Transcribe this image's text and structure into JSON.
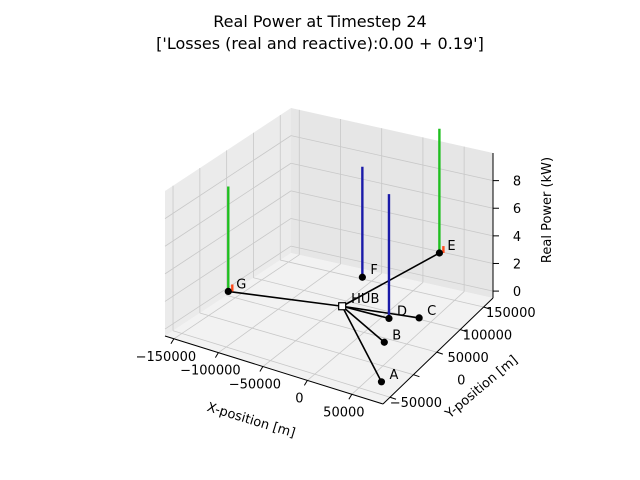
{
  "figure": {
    "title_line1": "Real Power at Timestep 24",
    "title_line2": "['Losses (real and reactive):0.00 + 0.19']"
  },
  "chart_data": {
    "type": "3d-network-bar",
    "title": "Real Power at Timestep 24\n['Losses (real and reactive):0.00 + 0.19']",
    "xlabel": "X-position [m]",
    "ylabel": "Y-position [m]",
    "zlabel": "Real Power (kW)",
    "xticks": [
      "−150000",
      "−100000",
      "−50000",
      "0",
      "50000"
    ],
    "yticks": [
      "−50000",
      "0",
      "50000",
      "100000",
      "150000"
    ],
    "zticks": [
      "0",
      "2",
      "4",
      "6",
      "8"
    ],
    "xlim": [
      -160000,
      85000
    ],
    "ylim": [
      -65000,
      170000
    ],
    "zlim": [
      -0.5,
      10
    ],
    "grid": true,
    "nodes": [
      {
        "name": "HUB",
        "label": "HUB",
        "x": -40000,
        "y": 75000
      },
      {
        "name": "A",
        "label": "A",
        "x": 70000,
        "y": -40000
      },
      {
        "name": "B",
        "label": "B",
        "x": 35000,
        "y": 30000
      },
      {
        "name": "C",
        "label": "C",
        "x": 42000,
        "y": 90000
      },
      {
        "name": "D",
        "label": "D",
        "x": 15000,
        "y": 75000
      },
      {
        "name": "E",
        "label": "E",
        "x": -10000,
        "y": 220000
      },
      {
        "name": "F",
        "label": "F",
        "x": -55000,
        "y": 140000
      },
      {
        "name": "G",
        "label": "G",
        "x": -155000,
        "y": 45000
      }
    ],
    "edges": [
      [
        "HUB",
        "A"
      ],
      [
        "HUB",
        "B"
      ],
      [
        "HUB",
        "C"
      ],
      [
        "HUB",
        "D"
      ],
      [
        "HUB",
        "E"
      ],
      [
        "HUB",
        "G"
      ]
    ],
    "bars": [
      {
        "node": "G",
        "color": "#1fbf1f",
        "value": 7.6
      },
      {
        "node": "G",
        "color": "#ff4a1a",
        "value": 0.5
      },
      {
        "node": "F",
        "color": "#1a1aa8",
        "value": 8.0
      },
      {
        "node": "D",
        "color": "#1a1aa8",
        "value": 9.0
      },
      {
        "node": "E",
        "color": "#1fbf1f",
        "value": 9.0
      },
      {
        "node": "E",
        "color": "#ff4a1a",
        "value": 0.5
      }
    ]
  }
}
